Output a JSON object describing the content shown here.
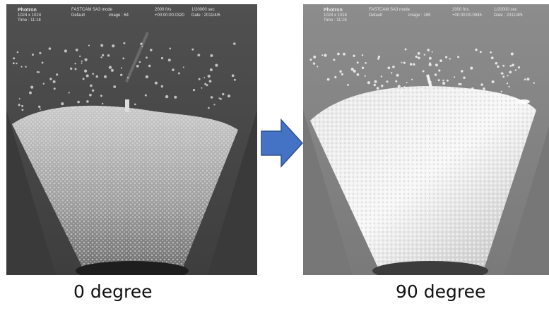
{
  "colors": {
    "arrow_fill": "#4472c4",
    "arrow_stroke": "#2f528f",
    "frame_left_bg": "#555555",
    "frame_right_bg": "#8a8a8a"
  },
  "left_panel": {
    "hud": {
      "brand": "Photron",
      "resolution": "1024 x 1024",
      "time": "Time : 11:18",
      "mode": "FASTCAM SA3 mode",
      "default": "Default",
      "image": "image : 64",
      "fps": "2000 fr/s",
      "timecode": "+00:00:00.0320",
      "shutter": "1/20000 sec",
      "date": "Date : 2011/4/5"
    },
    "caption": "0 degree"
  },
  "right_panel": {
    "hud": {
      "brand": "Photron",
      "resolution": "1024 x 1024",
      "time": "Time : 11:18",
      "mode": "FASTCAM SA3 mode",
      "default": "Default",
      "image": "image : 189",
      "fps": "2000 fr/s",
      "timecode": "+00:00:00.0945",
      "shutter": "1/20000 sec",
      "date": "Date : 2011/4/5"
    },
    "caption": "90 degree"
  },
  "arrow_icon": "right-arrow-icon"
}
